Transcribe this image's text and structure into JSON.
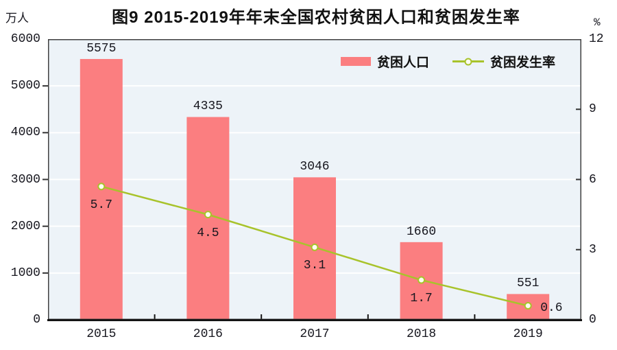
{
  "title": "图9  2015-2019年年末全国农村贫困人口和贫困发生率",
  "axes": {
    "left_unit": "万人",
    "right_unit": "%"
  },
  "chart_data": {
    "type": "combo-bar-line",
    "title": "图9  2015-2019年年末全国农村贫困人口和贫困发生率",
    "categories": [
      "2015",
      "2016",
      "2017",
      "2018",
      "2019"
    ],
    "series": [
      {
        "name": "贫困人口",
        "type": "bar",
        "axis": "left",
        "values": [
          5575,
          4335,
          3046,
          1660,
          551
        ],
        "labels": [
          "5575",
          "4335",
          "3046",
          "1660",
          "551"
        ],
        "color": "#FB7E80"
      },
      {
        "name": "贫困发生率",
        "type": "line",
        "axis": "right",
        "values": [
          5.7,
          4.5,
          3.1,
          1.7,
          0.6
        ],
        "labels": [
          "5.7",
          "4.5",
          "3.1",
          "1.7",
          "0.6"
        ],
        "color": "#A8C32B",
        "marker_fill": "#FDFDF2"
      }
    ],
    "left_axis": {
      "unit": "万人",
      "min": 0,
      "max": 6000,
      "ticks": [
        0,
        1000,
        2000,
        3000,
        4000,
        5000,
        6000
      ]
    },
    "right_axis": {
      "unit": "%",
      "min": 0,
      "max": 12,
      "ticks": [
        0,
        3,
        6,
        9,
        12
      ]
    },
    "grid": true,
    "legend_position": "top-right-inside",
    "plot_bg": "#EDF3F8",
    "grid_color": "#FFFFFF",
    "border_color": "#3F3F3F",
    "axis_line_color": "#141414",
    "text_color": "#16161E"
  }
}
